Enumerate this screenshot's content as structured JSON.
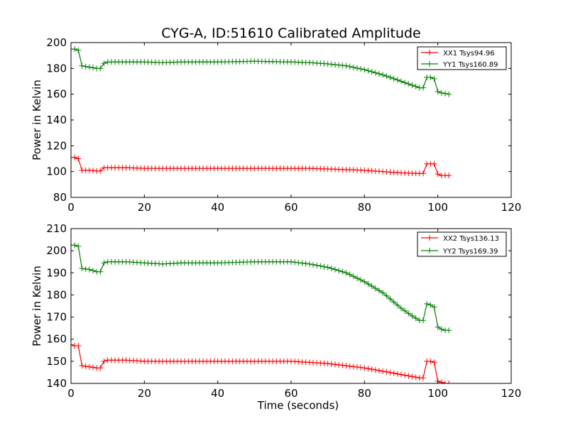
{
  "title": "CYG-A, ID:51610 Calibrated Amplitude",
  "chart_data": [
    {
      "type": "line",
      "title": "CYG-A, ID:51610 Calibrated Amplitude",
      "xlabel": "",
      "ylabel": "Power in Kelvin",
      "xlim": [
        0,
        120
      ],
      "ylim": [
        80,
        200
      ],
      "xticks": [
        0,
        20,
        40,
        60,
        80,
        100,
        120
      ],
      "yticks": [
        80,
        100,
        120,
        140,
        160,
        180,
        200
      ],
      "legend": "top-right",
      "marker": "plus",
      "series": [
        {
          "name": "XX1 Tsys94.96",
          "color": "#ff0000",
          "x": [
            0,
            1,
            2,
            3,
            5,
            7,
            8,
            9,
            10,
            15,
            20,
            30,
            40,
            50,
            60,
            65,
            70,
            75,
            80,
            85,
            90,
            95,
            96,
            97,
            98,
            99,
            100,
            101,
            102,
            103
          ],
          "y": [
            111,
            111,
            110,
            101,
            101,
            100.5,
            100.5,
            103,
            103,
            103,
            102.5,
            102.5,
            102.5,
            102.5,
            102.5,
            102.5,
            102,
            101.5,
            101,
            100,
            99,
            98.5,
            98.5,
            106,
            106,
            106,
            98,
            97,
            97,
            97
          ]
        },
        {
          "name": "YY1 Tsys160.89",
          "color": "#008000",
          "x": [
            0,
            1,
            2,
            3,
            5,
            7,
            8,
            9,
            10,
            15,
            20,
            25,
            30,
            40,
            50,
            60,
            65,
            70,
            75,
            80,
            85,
            90,
            93,
            95,
            96,
            97,
            98,
            99,
            100,
            101,
            102,
            103
          ],
          "y": [
            195,
            195,
            194,
            182,
            181,
            180,
            180,
            184,
            185,
            185,
            185,
            184.5,
            185,
            185,
            185.5,
            185,
            184.5,
            183.5,
            182,
            179,
            175,
            170,
            167,
            165,
            165,
            173,
            173,
            172,
            162,
            161,
            160.5,
            160
          ]
        }
      ]
    },
    {
      "type": "line",
      "title": "",
      "xlabel": "Time (seconds)",
      "ylabel": "Power in Kelvin",
      "xlim": [
        0,
        120
      ],
      "ylim": [
        140,
        210
      ],
      "xticks": [
        0,
        20,
        40,
        60,
        80,
        100,
        120
      ],
      "yticks": [
        140,
        150,
        160,
        170,
        180,
        190,
        200,
        210
      ],
      "legend": "top-right",
      "marker": "plus",
      "series": [
        {
          "name": "XX2 Tsys136.13",
          "color": "#ff0000",
          "x": [
            0,
            1,
            2,
            3,
            5,
            7,
            8,
            9,
            10,
            15,
            20,
            30,
            40,
            50,
            60,
            65,
            70,
            75,
            80,
            85,
            90,
            95,
            96,
            97,
            98,
            99,
            100,
            101,
            102,
            103
          ],
          "y": [
            157.5,
            157,
            157,
            148,
            147.5,
            147,
            147,
            150,
            150.5,
            150.5,
            150,
            150,
            150,
            150,
            150,
            149.5,
            149,
            148,
            147,
            145.5,
            144,
            142.5,
            142.5,
            150,
            150,
            149.5,
            141,
            140.5,
            140,
            140
          ]
        },
        {
          "name": "YY2 Tsys169.39",
          "color": "#008000",
          "x": [
            0,
            1,
            2,
            3,
            5,
            7,
            8,
            9,
            10,
            15,
            20,
            25,
            30,
            40,
            50,
            60,
            65,
            70,
            75,
            80,
            85,
            90,
            93,
            95,
            96,
            97,
            98,
            99,
            100,
            101,
            102,
            103
          ],
          "y": [
            202.5,
            202.5,
            202,
            192,
            191.5,
            190.5,
            190.5,
            194.5,
            195,
            195,
            194.5,
            194,
            194.5,
            194.5,
            195,
            195,
            194,
            192.5,
            190,
            186,
            181,
            174,
            170.5,
            168.5,
            168.5,
            176,
            175.5,
            174.5,
            165.5,
            164.5,
            164,
            164
          ]
        }
      ]
    }
  ]
}
